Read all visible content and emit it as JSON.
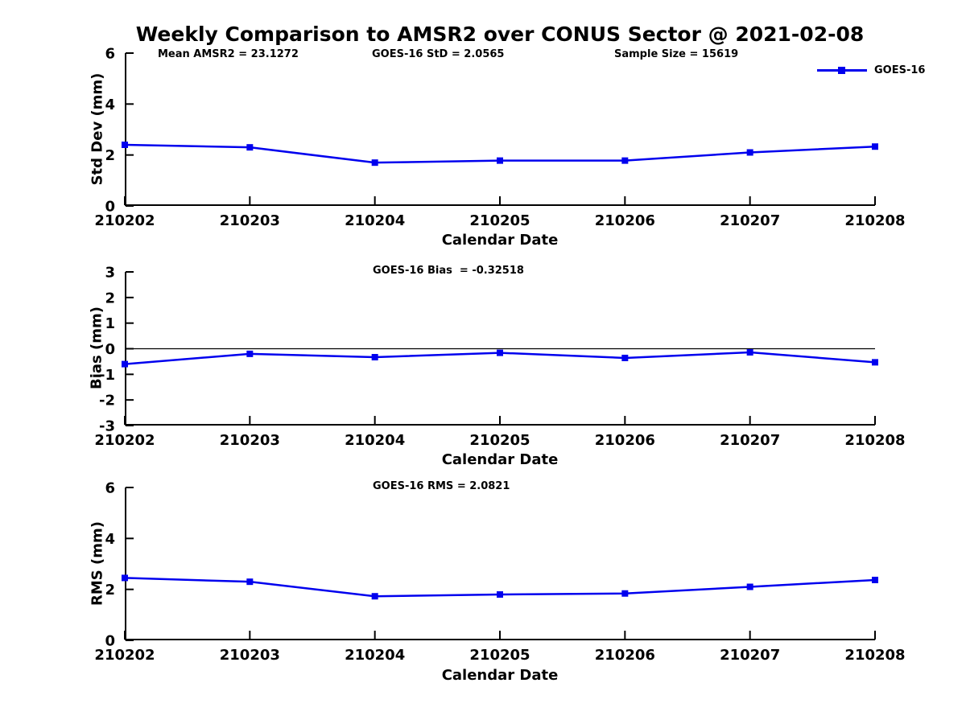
{
  "title": "Weekly Comparison to AMSR2 over CONUS Sector @ 2021-02-08",
  "colors": {
    "line": "#0000EE",
    "axis": "#000000",
    "background": "#FFFFFF"
  },
  "legend": {
    "label": "GOES-16",
    "marker": "filled-square",
    "position": "top-right-outside"
  },
  "chart_data": [
    {
      "type": "line",
      "title": "",
      "annotations": [
        "Mean AMSR2 = 23.1272",
        "GOES-16 StD = 2.0565",
        "Sample Size = 15619"
      ],
      "xlabel": "Calendar Date",
      "ylabel": "Std Dev (mm)",
      "categories": [
        "210202",
        "210203",
        "210204",
        "210205",
        "210206",
        "210207",
        "210208"
      ],
      "series": [
        {
          "name": "GOES-16",
          "values": [
            2.4,
            2.3,
            1.7,
            1.78,
            1.78,
            2.1,
            2.33
          ]
        }
      ],
      "ylim": [
        0,
        6
      ],
      "yticks": [
        0,
        2,
        4,
        6
      ],
      "zero_line": false,
      "grid": false
    },
    {
      "type": "line",
      "title": "GOES-16 Bias  = -0.32518",
      "annotations": [],
      "xlabel": "Calendar Date",
      "ylabel": "Bias (mm)",
      "categories": [
        "210202",
        "210203",
        "210204",
        "210205",
        "210206",
        "210207",
        "210208"
      ],
      "series": [
        {
          "name": "GOES-16",
          "values": [
            -0.6,
            -0.2,
            -0.33,
            -0.16,
            -0.36,
            -0.14,
            -0.53
          ]
        }
      ],
      "ylim": [
        -3,
        3
      ],
      "yticks": [
        3,
        2,
        1,
        0,
        -1,
        -2,
        -3
      ],
      "zero_line": true,
      "grid": false
    },
    {
      "type": "line",
      "title": "GOES-16 RMS = 2.0821",
      "annotations": [],
      "xlabel": "Calendar Date",
      "ylabel": "RMS (mm)",
      "categories": [
        "210202",
        "210203",
        "210204",
        "210205",
        "210206",
        "210207",
        "210208"
      ],
      "series": [
        {
          "name": "GOES-16",
          "values": [
            2.45,
            2.3,
            1.73,
            1.8,
            1.84,
            2.1,
            2.37
          ]
        }
      ],
      "ylim": [
        0,
        6
      ],
      "yticks": [
        0,
        2,
        4,
        6
      ],
      "zero_line": false,
      "grid": false
    }
  ]
}
